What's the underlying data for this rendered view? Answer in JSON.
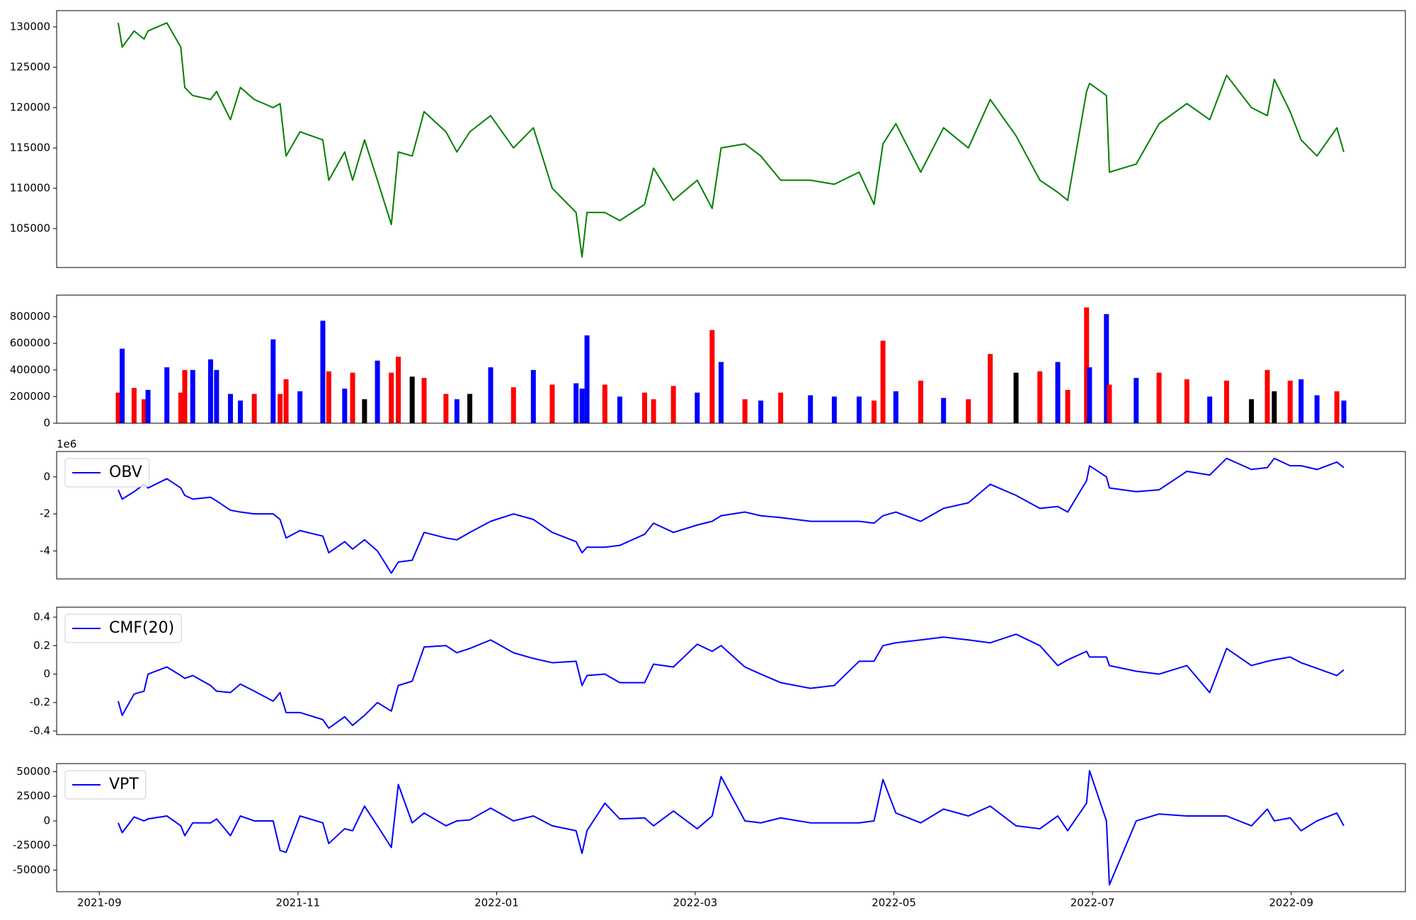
{
  "chart_data": [
    {
      "type": "line",
      "color": "green",
      "x": [
        0.19,
        0.23,
        0.35,
        0.45,
        0.49,
        0.68,
        0.82,
        0.86,
        0.94,
        1.12,
        1.18,
        1.32,
        1.42,
        1.56,
        1.75,
        1.82,
        1.88,
        2.02,
        2.25,
        2.31,
        2.47,
        2.55,
        2.67,
        2.8,
        2.94,
        3.01,
        3.15,
        3.27,
        3.49,
        3.6,
        3.73,
        3.94,
        4.17,
        4.37,
        4.56,
        4.8,
        4.86,
        4.91,
        5.09,
        5.24,
        5.49,
        5.58,
        5.78,
        6.02,
        6.17,
        6.26,
        6.5,
        6.66,
        6.86,
        7.16,
        7.4,
        7.65,
        7.8,
        7.89,
        8.02,
        8.27,
        8.5,
        8.75,
        8.97,
        9.23,
        9.47,
        9.65,
        9.75,
        9.94,
        9.97,
        10.14,
        10.17,
        10.44,
        10.67,
        10.95,
        11.18,
        11.35,
        11.6,
        11.76,
        11.83,
        11.99,
        12.1,
        12.26,
        12.46,
        12.53
      ],
      "values": [
        130500,
        127500,
        129500,
        128500,
        129500,
        130500,
        127500,
        122500,
        121500,
        121000,
        122000,
        118500,
        122500,
        121000,
        120000,
        120500,
        114000,
        117000,
        116000,
        111000,
        114500,
        111000,
        116000,
        111000,
        105500,
        114500,
        114000,
        119500,
        117000,
        114500,
        117000,
        119000,
        115000,
        117500,
        110000,
        107000,
        101500,
        107000,
        107000,
        106000,
        108000,
        112500,
        108500,
        111000,
        107500,
        115000,
        115500,
        114000,
        111000,
        111000,
        110500,
        112000,
        108000,
        115500,
        118000,
        112000,
        117500,
        115000,
        121000,
        116500,
        111000,
        109500,
        108500,
        122000,
        123000,
        121500,
        112000,
        113000,
        118000,
        120500,
        118500,
        124000,
        120000,
        119000,
        123500,
        119500,
        116000,
        114000,
        117500,
        114500
      ],
      "xlim": [
        -0.43,
        13.15
      ],
      "ylim": [
        100180,
        132020
      ],
      "yticks": [
        105000,
        110000,
        115000,
        120000,
        125000,
        130000
      ]
    },
    {
      "type": "bar",
      "x": [
        0.19,
        0.23,
        0.35,
        0.45,
        0.49,
        0.68,
        0.82,
        0.86,
        0.94,
        1.12,
        1.18,
        1.32,
        1.42,
        1.56,
        1.75,
        1.82,
        1.88,
        2.02,
        2.25,
        2.31,
        2.47,
        2.55,
        2.67,
        2.8,
        2.94,
        3.01,
        3.15,
        3.27,
        3.49,
        3.6,
        3.73,
        3.94,
        4.17,
        4.37,
        4.56,
        4.8,
        4.86,
        4.91,
        5.09,
        5.24,
        5.49,
        5.58,
        5.78,
        6.02,
        6.17,
        6.26,
        6.5,
        6.66,
        6.86,
        7.16,
        7.4,
        7.65,
        7.8,
        7.89,
        8.02,
        8.27,
        8.5,
        8.75,
        8.97,
        9.23,
        9.47,
        9.65,
        9.75,
        9.94,
        9.97,
        10.14,
        10.17,
        10.44,
        10.67,
        10.95,
        11.18,
        11.35,
        11.6,
        11.76,
        11.83,
        11.99,
        12.1,
        12.26,
        12.46,
        12.53
      ],
      "values": [
        230000,
        560000,
        265000,
        180000,
        250000,
        420000,
        230000,
        400000,
        400000,
        480000,
        400000,
        220000,
        170000,
        220000,
        630000,
        220000,
        330000,
        240000,
        770000,
        390000,
        260000,
        380000,
        180000,
        470000,
        380000,
        500000,
        350000,
        340000,
        220000,
        180000,
        220000,
        420000,
        270000,
        400000,
        290000,
        300000,
        260000,
        660000,
        290000,
        200000,
        230000,
        180000,
        280000,
        230000,
        700000,
        460000,
        180000,
        170000,
        230000,
        210000,
        200000,
        200000,
        170000,
        620000,
        240000,
        320000,
        190000,
        180000,
        520000,
        380000,
        390000,
        460000,
        250000,
        870000,
        420000,
        820000,
        290000,
        340000,
        380000,
        330000,
        200000,
        320000,
        180000,
        400000,
        240000,
        320000,
        330000,
        210000,
        240000,
        170000
      ],
      "colors": [
        "red",
        "blue",
        "red",
        "red",
        "blue",
        "blue",
        "red",
        "red",
        "blue",
        "blue",
        "blue",
        "blue",
        "blue",
        "red",
        "blue",
        "red",
        "red",
        "blue",
        "blue",
        "red",
        "blue",
        "red",
        "black",
        "blue",
        "red",
        "red",
        "black",
        "red",
        "red",
        "blue",
        "black",
        "blue",
        "red",
        "blue",
        "red",
        "blue",
        "blue",
        "blue",
        "red",
        "blue",
        "red",
        "red",
        "red",
        "blue",
        "red",
        "blue",
        "red",
        "blue",
        "red",
        "blue",
        "blue",
        "blue",
        "red",
        "red",
        "blue",
        "red",
        "blue",
        "red",
        "red",
        "black",
        "red",
        "blue",
        "red",
        "red",
        "blue",
        "blue",
        "red",
        "blue",
        "red",
        "red",
        "blue",
        "red",
        "black",
        "red",
        "black",
        "red",
        "blue",
        "blue",
        "red",
        "blue"
      ],
      "xlim": [
        -0.43,
        13.15
      ],
      "ylim": [
        0,
        962700
      ],
      "yticks": [
        0,
        200000,
        400000,
        600000,
        800000
      ]
    },
    {
      "type": "line",
      "offset_label": "1e6",
      "legend": "upper left",
      "x": [
        0.19,
        0.23,
        0.35,
        0.45,
        0.49,
        0.68,
        0.82,
        0.86,
        0.94,
        1.12,
        1.18,
        1.32,
        1.42,
        1.56,
        1.75,
        1.82,
        1.88,
        2.02,
        2.25,
        2.31,
        2.47,
        2.55,
        2.67,
        2.8,
        2.94,
        3.01,
        3.15,
        3.27,
        3.49,
        3.6,
        3.73,
        3.94,
        4.17,
        4.37,
        4.56,
        4.8,
        4.86,
        4.91,
        5.09,
        5.24,
        5.49,
        5.58,
        5.78,
        6.02,
        6.17,
        6.26,
        6.5,
        6.66,
        6.86,
        7.16,
        7.4,
        7.65,
        7.8,
        7.89,
        8.02,
        8.27,
        8.5,
        8.75,
        8.97,
        9.23,
        9.47,
        9.65,
        9.75,
        9.94,
        9.97,
        10.14,
        10.17,
        10.44,
        10.67,
        10.95,
        11.18,
        11.35,
        11.6,
        11.76,
        11.83,
        11.99,
        12.1,
        12.26,
        12.46,
        12.53
      ],
      "series": [
        {
          "name": "OBV",
          "color": "blue",
          "values": [
            -0.7,
            -1.2,
            -0.8,
            -0.4,
            -0.6,
            -0.1,
            -0.6,
            -1.0,
            -1.2,
            -1.1,
            -1.3,
            -1.8,
            -1.9,
            -2.0,
            -2.0,
            -2.3,
            -3.3,
            -2.9,
            -3.2,
            -4.1,
            -3.5,
            -3.9,
            -3.4,
            -4.0,
            -5.2,
            -4.6,
            -4.5,
            -3.0,
            -3.3,
            -3.4,
            -3.0,
            -2.4,
            -2.0,
            -2.3,
            -3.0,
            -3.5,
            -4.1,
            -3.8,
            -3.8,
            -3.7,
            -3.1,
            -2.5,
            -3.0,
            -2.6,
            -2.4,
            -2.1,
            -1.9,
            -2.1,
            -2.2,
            -2.4,
            -2.4,
            -2.4,
            -2.5,
            -2.1,
            -1.9,
            -2.4,
            -1.7,
            -1.4,
            -0.4,
            -1.0,
            -1.7,
            -1.6,
            -1.9,
            -0.2,
            0.6,
            0.0,
            -0.6,
            -0.8,
            -0.7,
            0.3,
            0.1,
            1.0,
            0.4,
            0.5,
            1.0,
            0.6,
            0.6,
            0.4,
            0.8,
            0.5
          ]
        }
      ],
      "xlim": [
        -0.43,
        13.15
      ],
      "ylim": [
        -5.51,
        1.37
      ],
      "yticks": [
        -4,
        -2,
        0
      ]
    },
    {
      "type": "line",
      "legend": "upper left",
      "x": [
        0.19,
        0.23,
        0.35,
        0.45,
        0.49,
        0.68,
        0.82,
        0.86,
        0.94,
        1.12,
        1.18,
        1.32,
        1.42,
        1.56,
        1.75,
        1.82,
        1.88,
        2.02,
        2.25,
        2.31,
        2.47,
        2.55,
        2.67,
        2.8,
        2.94,
        3.01,
        3.15,
        3.27,
        3.49,
        3.6,
        3.73,
        3.94,
        4.17,
        4.37,
        4.56,
        4.8,
        4.86,
        4.91,
        5.09,
        5.24,
        5.49,
        5.58,
        5.78,
        6.02,
        6.17,
        6.26,
        6.5,
        6.66,
        6.86,
        7.16,
        7.4,
        7.65,
        7.8,
        7.89,
        8.02,
        8.27,
        8.5,
        8.75,
        8.97,
        9.23,
        9.47,
        9.65,
        9.75,
        9.94,
        9.97,
        10.14,
        10.17,
        10.44,
        10.67,
        10.95,
        11.18,
        11.35,
        11.6,
        11.76,
        11.83,
        11.99,
        12.1,
        12.26,
        12.46,
        12.53
      ],
      "series": [
        {
          "name": "CMF(20)",
          "color": "blue",
          "values": [
            -0.19,
            -0.29,
            -0.14,
            -0.12,
            0.0,
            0.05,
            -0.01,
            -0.03,
            -0.01,
            -0.08,
            -0.12,
            -0.13,
            -0.07,
            -0.12,
            -0.19,
            -0.13,
            -0.27,
            -0.27,
            -0.32,
            -0.38,
            -0.3,
            -0.36,
            -0.29,
            -0.2,
            -0.26,
            -0.08,
            -0.05,
            0.19,
            0.2,
            0.15,
            0.18,
            0.24,
            0.15,
            0.11,
            0.08,
            0.09,
            -0.08,
            -0.01,
            0.0,
            -0.06,
            -0.06,
            0.07,
            0.05,
            0.21,
            0.16,
            0.2,
            0.05,
            0.0,
            -0.06,
            -0.1,
            -0.08,
            0.09,
            0.09,
            0.2,
            0.22,
            0.24,
            0.26,
            0.24,
            0.22,
            0.28,
            0.2,
            0.06,
            0.1,
            0.16,
            0.12,
            0.12,
            0.06,
            0.02,
            0.0,
            0.06,
            -0.13,
            0.18,
            0.06,
            0.09,
            0.1,
            0.12,
            0.08,
            0.04,
            -0.01,
            0.03
          ]
        }
      ],
      "xlim": [
        -0.43,
        13.15
      ],
      "ylim": [
        -0.425,
        0.47
      ],
      "yticks": [
        -0.4,
        -0.2,
        0.0,
        0.2,
        0.4
      ]
    },
    {
      "type": "line",
      "legend": "upper left",
      "x": [
        0.19,
        0.23,
        0.35,
        0.45,
        0.49,
        0.68,
        0.82,
        0.86,
        0.94,
        1.12,
        1.18,
        1.32,
        1.42,
        1.56,
        1.75,
        1.82,
        1.88,
        2.02,
        2.25,
        2.31,
        2.47,
        2.55,
        2.67,
        2.8,
        2.94,
        3.01,
        3.15,
        3.27,
        3.49,
        3.6,
        3.73,
        3.94,
        4.17,
        4.37,
        4.56,
        4.8,
        4.86,
        4.91,
        5.09,
        5.24,
        5.49,
        5.58,
        5.78,
        6.02,
        6.17,
        6.26,
        6.5,
        6.66,
        6.86,
        7.16,
        7.4,
        7.65,
        7.8,
        7.89,
        8.02,
        8.27,
        8.5,
        8.75,
        8.97,
        9.23,
        9.47,
        9.65,
        9.75,
        9.94,
        9.97,
        10.14,
        10.17,
        10.44,
        10.67,
        10.95,
        11.18,
        11.35,
        11.6,
        11.76,
        11.83,
        11.99,
        12.1,
        12.26,
        12.46,
        12.53
      ],
      "series": [
        {
          "name": "VPT",
          "color": "blue",
          "values": [
            -2000,
            -12000,
            4000,
            0,
            2000,
            5000,
            -5000,
            -15000,
            -2000,
            -2000,
            2000,
            -15000,
            5000,
            0,
            0,
            -30000,
            -32000,
            5000,
            -2000,
            -23000,
            -8000,
            -10000,
            15000,
            -5000,
            -27000,
            37000,
            -2000,
            8000,
            -5000,
            0,
            1000,
            13000,
            0,
            5000,
            -5000,
            -10000,
            -33000,
            -10000,
            18000,
            2000,
            3000,
            -5000,
            10000,
            -8000,
            5000,
            45000,
            0,
            -2000,
            3000,
            -2000,
            -2000,
            -2000,
            0,
            42000,
            8000,
            -2000,
            12000,
            5000,
            15000,
            -5000,
            -8000,
            5000,
            -10000,
            18000,
            51000,
            0,
            -65000,
            0,
            7000,
            5000,
            5000,
            5000,
            -5000,
            12000,
            0,
            3000,
            -10000,
            0,
            8000,
            -5000
          ]
        }
      ],
      "xlim": [
        -0.43,
        13.15
      ],
      "ylim": [
        -71980,
        58240
      ],
      "yticks": [
        -50000,
        -25000,
        0,
        25000,
        50000
      ],
      "xticks": [
        {
          "value": 0,
          "label": "2021-09"
        },
        {
          "value": 2,
          "label": "2021-11"
        },
        {
          "value": 4,
          "label": "2022-01"
        },
        {
          "value": 6,
          "label": "2022-03"
        },
        {
          "value": 8,
          "label": "2022-05"
        },
        {
          "value": 10,
          "label": "2022-07"
        },
        {
          "value": 12,
          "label": "2022-09"
        }
      ]
    }
  ]
}
